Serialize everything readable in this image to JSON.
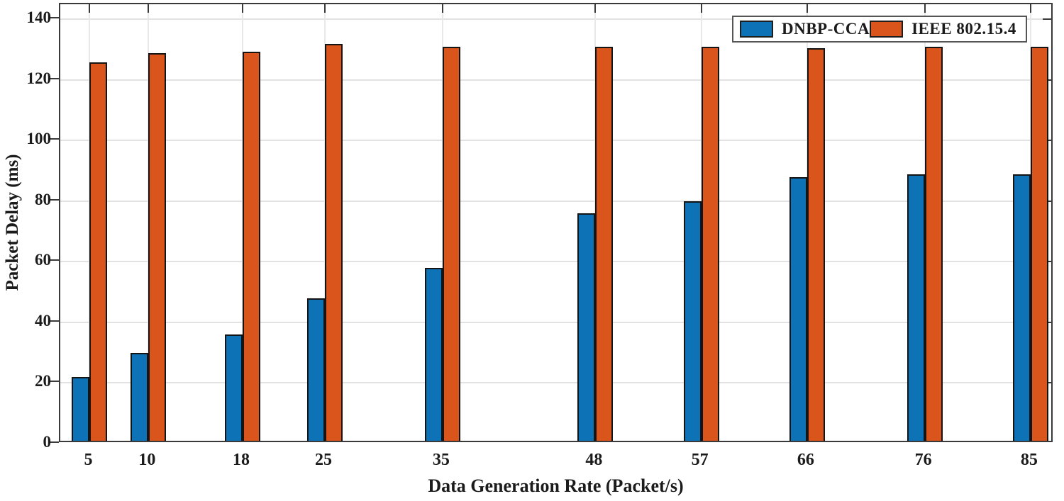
{
  "figure": {
    "background": "#ffffff",
    "axis_color": "#3a3a3a",
    "grid_color": "#e2e2e2",
    "text_color": "#1b1b1b",
    "bar_edge_color": "#141414"
  },
  "chart_data": {
    "type": "bar",
    "title": "",
    "xlabel": "Data Generation Rate (Packet/s)",
    "ylabel": "Packet Delay (ms)",
    "categories": [
      5,
      10,
      18,
      25,
      35,
      48,
      57,
      66,
      76,
      85
    ],
    "series": [
      {
        "name": "DNBP-CCA",
        "color": "#0E72B7",
        "values": [
          21,
          29,
          35,
          47,
          57,
          75,
          79,
          87,
          88,
          88
        ]
      },
      {
        "name": "IEEE 802.15.4",
        "color": "#D9551B",
        "values": [
          125,
          128,
          128.5,
          131,
          130,
          130,
          130,
          129.5,
          130,
          130
        ]
      }
    ],
    "xlim": [
      2.5,
      87
    ],
    "ylim": [
      0,
      145
    ],
    "yticks": [
      0,
      20,
      40,
      60,
      80,
      100,
      120,
      140
    ],
    "grid": "on",
    "legend_position": "top-right"
  }
}
